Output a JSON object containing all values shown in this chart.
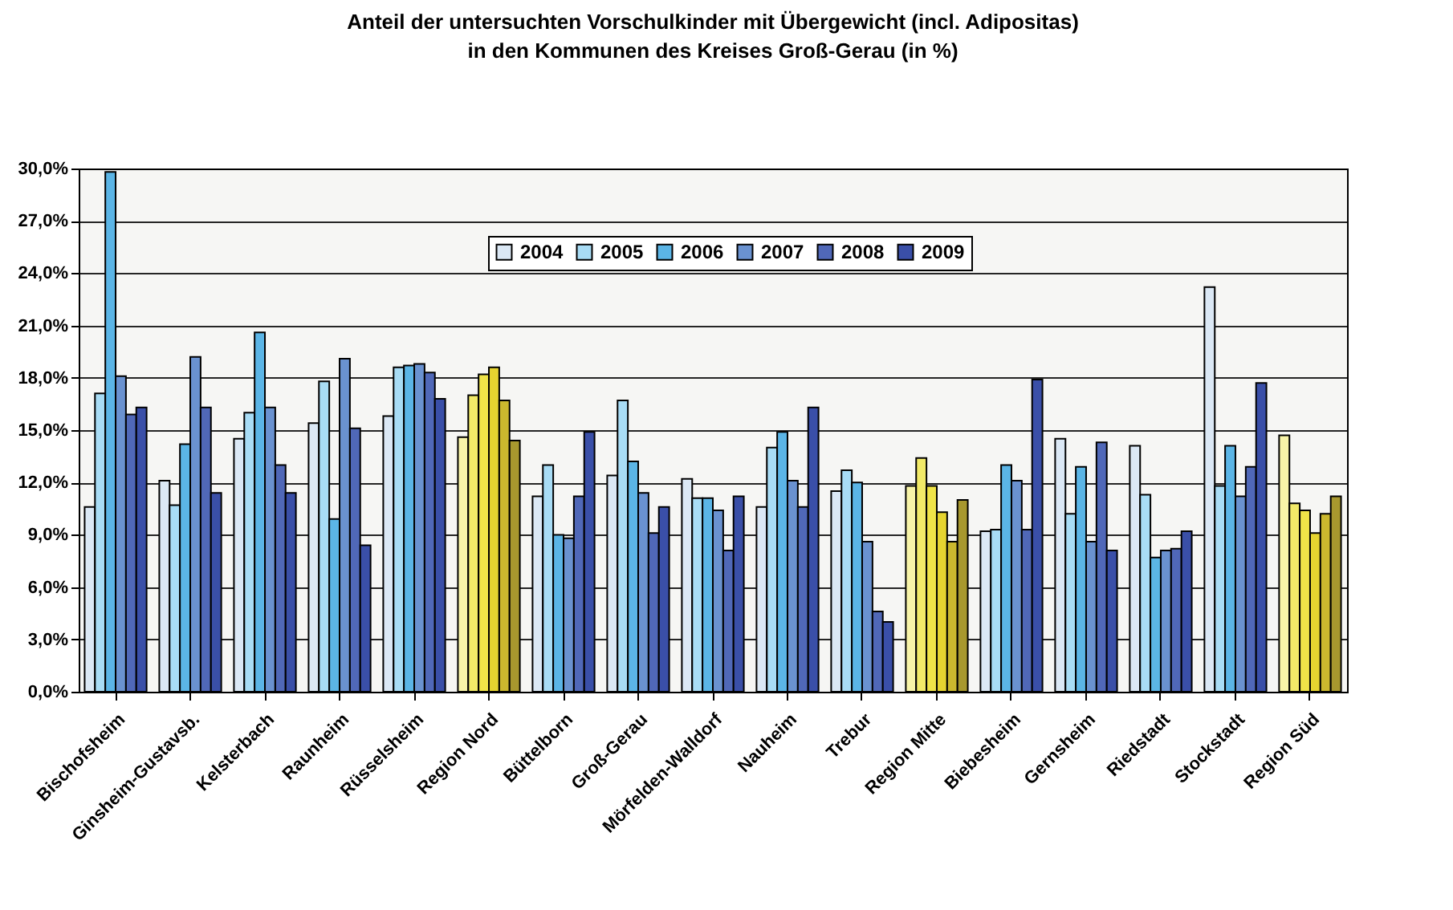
{
  "chart_data": {
    "type": "bar",
    "title": [
      "Anteil der untersuchten Vorschulkinder mit Übergewicht (incl. Adipositas)",
      "in den Kommunen des Kreises Groß-Gerau (in %)"
    ],
    "categories": [
      "Bischofsheim",
      "Ginsheim-Gustavsb.",
      "Kelsterbach",
      "Raunheim",
      "Rüsselsheim",
      "Region Nord",
      "Büttelborn",
      "Groß-Gerau",
      "Mörfelden-Walldorf",
      "Nauheim",
      "Trebur",
      "Region Mitte",
      "Biebesheim",
      "Gernsheim",
      "Riedstadt",
      "Stockstadt",
      "Region Süd"
    ],
    "series": [
      {
        "name": "2004",
        "color": "#dbe8f5",
        "colors": [
          "#dbe8f5",
          "#dbe8f5",
          "#dbe8f5",
          "#dbe8f5",
          "#dbe8f5",
          "#f8f4a8",
          "#dbe8f5",
          "#dbe8f5",
          "#dbe8f5",
          "#dbe8f5",
          "#dbe8f5",
          "#f8f4a8",
          "#dbe8f5",
          "#dbe8f5",
          "#dbe8f5",
          "#dbe8f5",
          "#f8f4a8"
        ],
        "values": [
          10.6,
          12.1,
          14.5,
          15.4,
          15.8,
          14.6,
          11.2,
          12.4,
          12.2,
          10.6,
          11.5,
          11.8,
          9.2,
          14.5,
          14.1,
          23.2,
          14.7
        ]
      },
      {
        "name": "2005",
        "color": "#a8dcf5",
        "colors": [
          "#a8dcf5",
          "#a8dcf5",
          "#a8dcf5",
          "#a8dcf5",
          "#a8dcf5",
          "#f2ea68",
          "#a8dcf5",
          "#a8dcf5",
          "#a8dcf5",
          "#a8dcf5",
          "#a8dcf5",
          "#f2ea68",
          "#a8dcf5",
          "#a8dcf5",
          "#a8dcf5",
          "#a8dcf5",
          "#f2ea68"
        ],
        "values": [
          17.1,
          10.7,
          16.0,
          17.8,
          18.6,
          17.0,
          13.0,
          16.7,
          11.1,
          14.0,
          12.7,
          13.4,
          9.3,
          10.2,
          11.3,
          11.8,
          10.8
        ]
      },
      {
        "name": "2006",
        "color": "#5bb5e6",
        "colors": [
          "#5bb5e6",
          "#5bb5e6",
          "#5bb5e6",
          "#5bb5e6",
          "#5bb5e6",
          "#f0e448",
          "#5bb5e6",
          "#5bb5e6",
          "#5bb5e6",
          "#5bb5e6",
          "#5bb5e6",
          "#f0e448",
          "#5bb5e6",
          "#5bb5e6",
          "#5bb5e6",
          "#5bb5e6",
          "#f0e448"
        ],
        "values": [
          29.8,
          14.2,
          20.6,
          9.9,
          18.7,
          18.2,
          9.0,
          13.2,
          11.1,
          14.9,
          12.0,
          11.8,
          13.0,
          12.9,
          7.7,
          14.1,
          10.4
        ]
      },
      {
        "name": "2007",
        "color": "#6a92d0",
        "colors": [
          "#6a92d0",
          "#6a92d0",
          "#6a92d0",
          "#6a92d0",
          "#6a92d0",
          "#e6d430",
          "#6a92d0",
          "#6a92d0",
          "#6a92d0",
          "#6a92d0",
          "#6a92d0",
          "#e6d430",
          "#6a92d0",
          "#6a92d0",
          "#6a92d0",
          "#6a92d0",
          "#e6d430"
        ],
        "values": [
          18.1,
          19.2,
          16.3,
          19.1,
          18.8,
          18.6,
          8.8,
          11.4,
          10.4,
          12.1,
          8.6,
          10.3,
          12.1,
          8.6,
          8.1,
          11.2,
          9.1
        ]
      },
      {
        "name": "2008",
        "color": "#5068b8",
        "colors": [
          "#5068b8",
          "#5068b8",
          "#5068b8",
          "#5068b8",
          "#5068b8",
          "#cbb82e",
          "#5068b8",
          "#5068b8",
          "#5068b8",
          "#5068b8",
          "#5068b8",
          "#cbb82e",
          "#5068b8",
          "#5068b8",
          "#5068b8",
          "#5068b8",
          "#cbb82e"
        ],
        "values": [
          15.9,
          16.3,
          13.0,
          15.1,
          18.3,
          16.7,
          11.2,
          9.1,
          8.1,
          10.6,
          4.6,
          8.6,
          9.3,
          14.3,
          8.2,
          12.9,
          10.2
        ]
      },
      {
        "name": "2009",
        "color": "#3a4fa8",
        "colors": [
          "#3a4fa8",
          "#3a4fa8",
          "#3a4fa8",
          "#3a4fa8",
          "#3a4fa8",
          "#a8982e",
          "#3a4fa8",
          "#3a4fa8",
          "#3a4fa8",
          "#3a4fa8",
          "#3a4fa8",
          "#a8982e",
          "#3a4fa8",
          "#3a4fa8",
          "#3a4fa8",
          "#3a4fa8",
          "#a8982e"
        ],
        "values": [
          16.3,
          11.4,
          11.4,
          8.4,
          16.8,
          14.4,
          14.9,
          10.6,
          11.2,
          16.3,
          4.0,
          11.0,
          17.9,
          8.1,
          9.2,
          17.7,
          11.2
        ]
      }
    ],
    "ylim": [
      0,
      30
    ],
    "yticks": [
      {
        "value": 0,
        "label": "0,0%"
      },
      {
        "value": 3,
        "label": "3,0%"
      },
      {
        "value": 6,
        "label": "6,0%"
      },
      {
        "value": 9,
        "label": "9,0%"
      },
      {
        "value": 12,
        "label": "12,0%"
      },
      {
        "value": 15,
        "label": "15,0%"
      },
      {
        "value": 18,
        "label": "18,0%"
      },
      {
        "value": 21,
        "label": "21,0%"
      },
      {
        "value": 24,
        "label": "24,0%"
      },
      {
        "value": 27,
        "label": "27,0%"
      },
      {
        "value": 30,
        "label": "30,0%"
      }
    ],
    "grid": "y",
    "legend": "top"
  }
}
